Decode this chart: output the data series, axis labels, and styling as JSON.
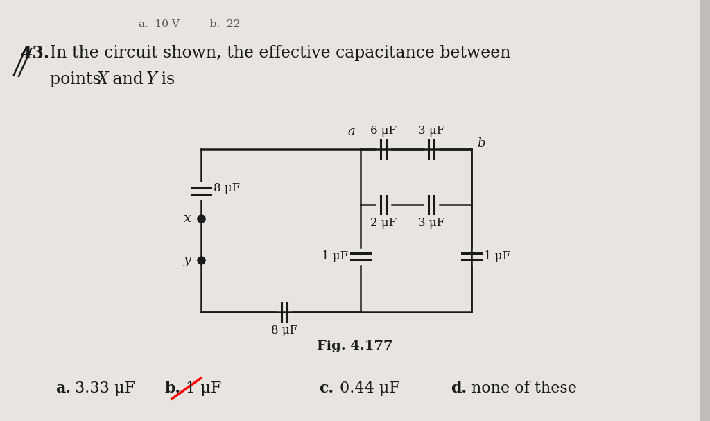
{
  "bg_color": "#d8d4d0",
  "paper_color": "#e8e4e0",
  "text_color": "#1a1a1a",
  "line_color": "#1a1a1a",
  "title_number": "43.",
  "title_text1": "In the circuit shown, the effective capacitance between",
  "title_text2": "points ",
  "title_text2b": "X",
  "title_text2c": " and ",
  "title_text2d": "Y",
  "title_text2e": " is",
  "fig_label": "Fig. 4.177",
  "cap_8uF_top": "8 μF",
  "cap_8uF_bot": "8 μF",
  "cap_6uF": "6 μF",
  "cap_3uF_top": "3 μF",
  "cap_2uF": "2 μF",
  "cap_3uF_bot": "3 μF",
  "cap_1uF_left": "1 μF",
  "cap_1uF_right": "1 μF",
  "pt_a": "a",
  "pt_b": "b",
  "pt_x": "x",
  "pt_y": "y",
  "ans_a": "a.",
  "ans_a_val": "3.33 μF",
  "ans_b": "b.",
  "ans_b_val": "1 μF",
  "ans_c": "c.",
  "ans_c_val": "0.44 μF",
  "ans_d": "d.",
  "ans_d_val": "none of these",
  "header_text": "a.  10 V         b.  22"
}
